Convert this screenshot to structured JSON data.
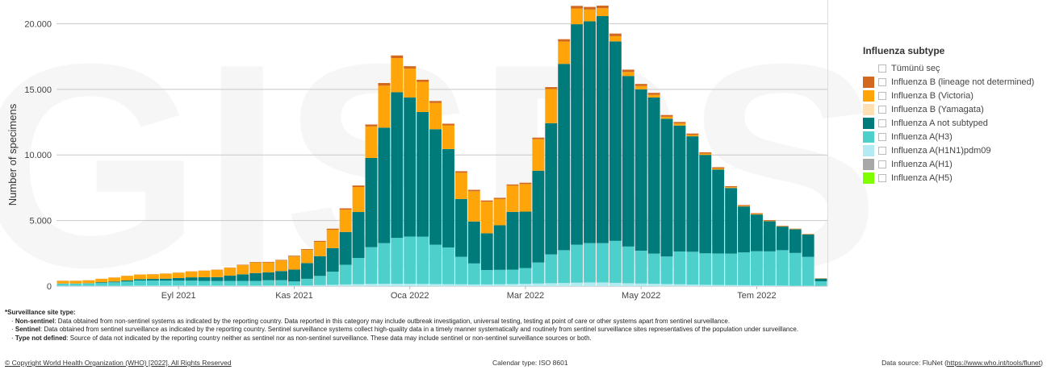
{
  "chart_data": {
    "type": "bar",
    "stacked": true,
    "ylabel": "Number of specimens",
    "ylim": [
      0,
      21500
    ],
    "yticks": [
      0,
      5000,
      10000,
      15000,
      20000
    ],
    "ytick_labels": [
      "0",
      "5.000",
      "10.000",
      "15.000",
      "20.000"
    ],
    "grid": true,
    "watermark": "GISRS",
    "x_labels": [
      {
        "index": 9,
        "label": "Eyl 2021"
      },
      {
        "index": 18,
        "label": "Kas 2021"
      },
      {
        "index": 27,
        "label": "Oca 2022"
      },
      {
        "index": 36,
        "label": "Mar 2022"
      },
      {
        "index": 45,
        "label": "May 2022"
      },
      {
        "index": 54,
        "label": "Tem 2022"
      }
    ],
    "num_bars": 60,
    "series": [
      {
        "name": "Influenza A(H1N1)pdm09",
        "color": "#b2ebf2",
        "values": [
          30,
          30,
          30,
          30,
          30,
          30,
          40,
          40,
          40,
          40,
          40,
          40,
          40,
          40,
          40,
          40,
          50,
          50,
          60,
          60,
          80,
          100,
          130,
          150,
          170,
          180,
          180,
          180,
          170,
          160,
          150,
          140,
          130,
          130,
          140,
          160,
          180,
          200,
          220,
          240,
          260,
          280,
          280,
          250,
          220,
          200,
          180,
          160,
          140,
          120,
          100,
          90,
          80,
          70,
          60,
          50,
          40,
          30,
          30,
          20
        ]
      },
      {
        "name": "Influenza A(H3)",
        "color": "#4dd0cc",
        "values": [
          170,
          170,
          190,
          220,
          260,
          320,
          390,
          390,
          380,
          380,
          380,
          360,
          350,
          360,
          360,
          360,
          400,
          400,
          300,
          500,
          700,
          1000,
          1500,
          2000,
          2800,
          3100,
          3500,
          3600,
          3600,
          3000,
          2800,
          2100,
          1600,
          1100,
          1100,
          1100,
          1200,
          1600,
          2200,
          2500,
          2900,
          3000,
          3000,
          3200,
          2800,
          2500,
          2300,
          2100,
          2500,
          2500,
          2400,
          2400,
          2400,
          2500,
          2600,
          2600,
          2700,
          2500,
          2200,
          350
        ]
      },
      {
        "name": "Influenza A not subtyped",
        "color": "#007b7b",
        "values": [
          0,
          0,
          0,
          50,
          60,
          80,
          100,
          120,
          150,
          200,
          250,
          280,
          300,
          400,
          500,
          600,
          600,
          700,
          900,
          1200,
          1500,
          1800,
          2500,
          3500,
          6800,
          8800,
          11100,
          10600,
          9500,
          8800,
          7500,
          4400,
          3200,
          2800,
          3400,
          4400,
          4300,
          7000,
          10000,
          14200,
          16800,
          16900,
          17300,
          15200,
          13000,
          12300,
          11900,
          10500,
          9600,
          8800,
          7500,
          6400,
          5000,
          3500,
          2800,
          2300,
          1800,
          1800,
          1700,
          200
        ]
      },
      {
        "name": "Influenza B (Yamagata)",
        "color": "#ffe0b2",
        "values": [
          0,
          0,
          0,
          0,
          0,
          0,
          0,
          0,
          0,
          0,
          0,
          0,
          0,
          0,
          0,
          0,
          0,
          0,
          0,
          0,
          0,
          0,
          0,
          0,
          0,
          0,
          0,
          0,
          0,
          0,
          0,
          0,
          0,
          0,
          0,
          0,
          0,
          0,
          0,
          0,
          0,
          0,
          0,
          0,
          0,
          0,
          0,
          0,
          0,
          0,
          0,
          0,
          0,
          0,
          0,
          0,
          0,
          0,
          0,
          0
        ]
      },
      {
        "name": "Influenza B (Victoria)",
        "color": "#ffa50a",
        "values": [
          200,
          200,
          220,
          250,
          300,
          350,
          350,
          350,
          380,
          400,
          450,
          500,
          550,
          600,
          700,
          800,
          750,
          800,
          1000,
          1000,
          1100,
          1400,
          1700,
          1900,
          2400,
          3200,
          2600,
          2200,
          2300,
          2000,
          1800,
          2000,
          2300,
          2400,
          2000,
          2000,
          2100,
          2400,
          2600,
          1700,
          1200,
          900,
          600,
          400,
          300,
          250,
          200,
          150,
          150,
          100,
          100,
          80,
          60,
          40,
          40,
          30,
          20,
          20,
          20,
          10
        ]
      },
      {
        "name": "Influenza B (lineage not determined)",
        "color": "#d2691e",
        "values": [
          10,
          10,
          10,
          10,
          10,
          10,
          10,
          10,
          10,
          10,
          10,
          10,
          20,
          20,
          30,
          40,
          50,
          50,
          60,
          60,
          70,
          80,
          100,
          120,
          150,
          200,
          200,
          180,
          160,
          150,
          130,
          120,
          110,
          100,
          90,
          90,
          100,
          120,
          150,
          180,
          200,
          200,
          200,
          200,
          180,
          160,
          150,
          130,
          120,
          110,
          100,
          90,
          80,
          70,
          60,
          50,
          40,
          30,
          30,
          20
        ]
      },
      {
        "name": "Influenza A(H1)",
        "color": "#a8a8a8",
        "values": [
          0,
          0,
          0,
          0,
          0,
          0,
          0,
          0,
          0,
          0,
          0,
          0,
          0,
          0,
          0,
          0,
          0,
          0,
          0,
          0,
          0,
          0,
          0,
          0,
          0,
          0,
          0,
          0,
          0,
          0,
          0,
          0,
          0,
          0,
          0,
          0,
          0,
          0,
          0,
          0,
          0,
          0,
          0,
          0,
          0,
          0,
          0,
          0,
          0,
          0,
          0,
          0,
          0,
          0,
          0,
          0,
          0,
          0,
          0,
          0
        ]
      },
      {
        "name": "Influenza A(H5)",
        "color": "#7fff00",
        "values": [
          0,
          0,
          0,
          0,
          0,
          0,
          0,
          0,
          0,
          0,
          0,
          0,
          0,
          0,
          0,
          0,
          0,
          0,
          0,
          0,
          0,
          0,
          0,
          0,
          0,
          0,
          0,
          0,
          0,
          0,
          0,
          0,
          0,
          0,
          0,
          0,
          0,
          0,
          0,
          0,
          0,
          0,
          0,
          0,
          0,
          0,
          0,
          0,
          0,
          0,
          0,
          0,
          0,
          0,
          0,
          0,
          0,
          0,
          0,
          0
        ]
      }
    ]
  },
  "legend": {
    "title": "Influenza subtype",
    "select_all": "Tümünü seç",
    "items": [
      {
        "label": "Influenza B (lineage not determined)",
        "color": "#d2691e"
      },
      {
        "label": "Influenza B (Victoria)",
        "color": "#ffa50a"
      },
      {
        "label": "Influenza B (Yamagata)",
        "color": "#ffe0b2"
      },
      {
        "label": "Influenza A not subtyped",
        "color": "#007b7b"
      },
      {
        "label": "Influenza A(H3)",
        "color": "#4dd0cc"
      },
      {
        "label": "Influenza A(H1N1)pdm09",
        "color": "#b2ebf2"
      },
      {
        "label": "Influenza A(H1)",
        "color": "#a8a8a8"
      },
      {
        "label": "Influenza A(H5)",
        "color": "#7fff00"
      }
    ]
  },
  "footnotes": {
    "heading": "*Surveillance site type:",
    "lines": [
      {
        "term": "Non-sentinel",
        "text": ": Data obtained from non-sentinel systems as indicated by the reporting country. Data reported in this category may include outbreak investigation, universal testing, testing at point of care or other systems apart from sentinel surveillance."
      },
      {
        "term": "Sentinel",
        "text": ": Data obtained from sentinel surveillance as indicated by the reporting country. Sentinel surveillance systems collect high-quality data in a timely manner systematically and routinely from sentinel surveillance sites representatives of the population under surveillance."
      },
      {
        "term": "Type not defined",
        "text": ": Source of data not indicated by the reporting country neither as sentinel nor as non-sentinel surveillance. These data may include sentinel or non-sentinel surveillance sources or both."
      }
    ]
  },
  "footer": {
    "copyright": "© Copyright World Health Organization (WHO) [2022]. All Rights Reserved",
    "calendar": "Calendar type: ISO 8601",
    "source_prefix": "Data source: FluNet (",
    "source_link": "https://www.who.int/tools/flunet",
    "source_suffix": ")"
  }
}
